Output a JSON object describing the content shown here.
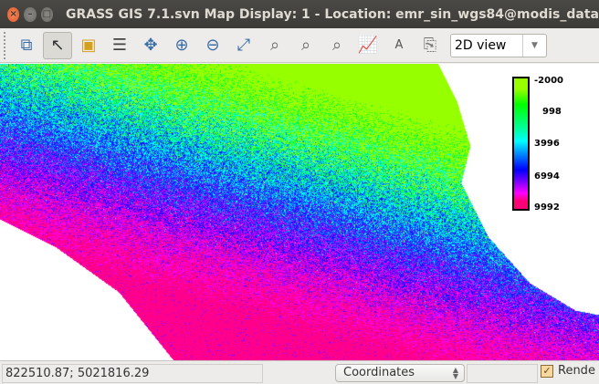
{
  "window": {
    "title": "GRASS GIS 7.1.svn Map Display: 1 - Location: emr_sin_wgs84@modis_data"
  },
  "toolbar": {
    "tools": [
      "add-map-icon",
      "pointer-icon",
      "select-icon",
      "query-icon",
      "pan-icon",
      "zoom-in-icon",
      "zoom-out-icon",
      "zoom-extent-icon",
      "zoom-region-icon",
      "zoom-back-icon",
      "zoom-menu-icon",
      "analyze-icon",
      "overlay-icon",
      "save-icon"
    ],
    "view_mode": "2D view"
  },
  "legend": {
    "labels": [
      "-2000",
      "998",
      "3996",
      "6994",
      "9992"
    ]
  },
  "status": {
    "coordinates": "822510.87; 5021816.29",
    "mode": "Coordinates",
    "render_label": "Rende",
    "render_checked": true
  }
}
